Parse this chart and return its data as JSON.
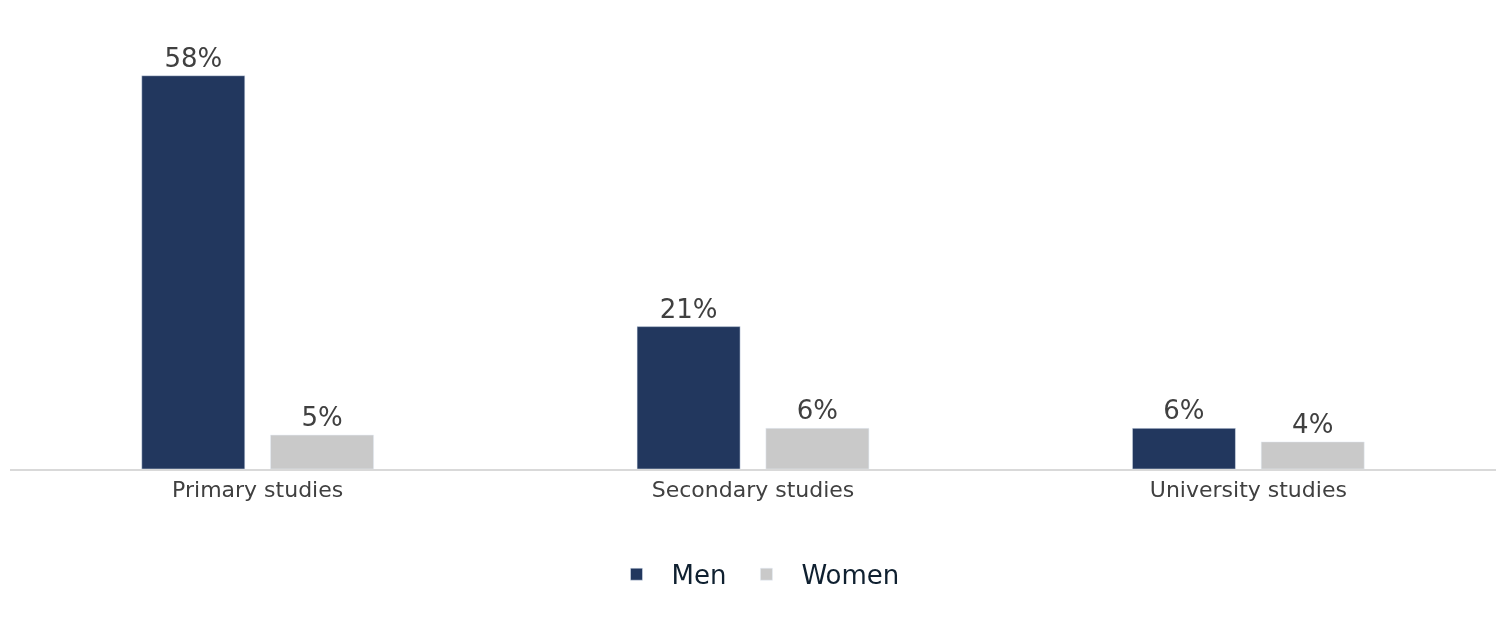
{
  "chart_data": {
    "type": "bar",
    "categories": [
      "Primary studies",
      "Secondary studies",
      "University studies"
    ],
    "series": [
      {
        "name": "Men",
        "color": "#22375e",
        "values": [
          58,
          21,
          6
        ],
        "value_labels": [
          "58%",
          "21%",
          "6%"
        ]
      },
      {
        "name": "Women",
        "color": "#c9c9c9",
        "values": [
          5,
          6,
          4
        ],
        "value_labels": [
          "5%",
          "6%",
          "4%"
        ]
      }
    ],
    "legend": "bottom"
  }
}
